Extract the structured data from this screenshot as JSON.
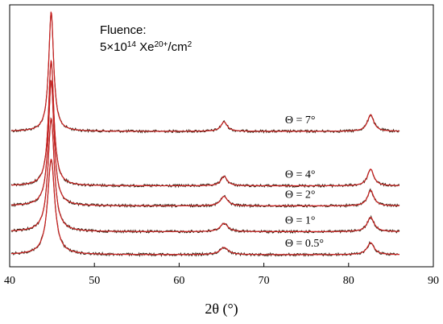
{
  "chart_data": {
    "type": "line",
    "title": "",
    "xlabel": "2θ (°)",
    "ylabel": "",
    "xlim": [
      40,
      90
    ],
    "xticks": [
      40,
      50,
      60,
      70,
      80,
      90
    ],
    "grid": false,
    "annotation": {
      "line1": "Fluence:",
      "line2_base": "5×10",
      "line2_exp": "14",
      "line2_ion": " Xe",
      "line2_ion_sup": "20+",
      "line2_unit": "/cm",
      "line2_unit_sup": "2"
    },
    "colors": {
      "fit": "#cc2020",
      "data": "#3a2a1a",
      "axes": "#000000"
    },
    "peaks": [
      {
        "position": 44.9,
        "relative_height": 1.0
      },
      {
        "position": 65.3,
        "relative_height": 0.08
      },
      {
        "position": 82.6,
        "relative_height": 0.14
      }
    ],
    "series": [
      {
        "name": "Θ = 7°",
        "label": "Θ = 7°",
        "baseline": 1.0,
        "peak_heights": [
          1.0,
          0.08,
          0.14
        ],
        "widths": [
          0.35,
          0.45,
          0.45
        ]
      },
      {
        "name": "Θ = 4°",
        "label": "Θ = 4°",
        "baseline": 0.62,
        "peak_heights": [
          1.05,
          0.08,
          0.14
        ],
        "widths": [
          0.38,
          0.45,
          0.45
        ]
      },
      {
        "name": "Θ = 2°",
        "label": "Θ = 2°",
        "baseline": 0.48,
        "peak_heights": [
          1.05,
          0.08,
          0.13
        ],
        "widths": [
          0.4,
          0.5,
          0.45
        ]
      },
      {
        "name": "Θ = 1°",
        "label": "Θ = 1°",
        "baseline": 0.3,
        "peak_heights": [
          0.95,
          0.07,
          0.12
        ],
        "widths": [
          0.45,
          0.55,
          0.5
        ]
      },
      {
        "name": "Θ = 0.5°",
        "label": "Θ = 0.5°",
        "baseline": 0.14,
        "peak_heights": [
          0.8,
          0.06,
          0.1
        ],
        "widths": [
          0.5,
          0.6,
          0.5
        ]
      }
    ]
  }
}
